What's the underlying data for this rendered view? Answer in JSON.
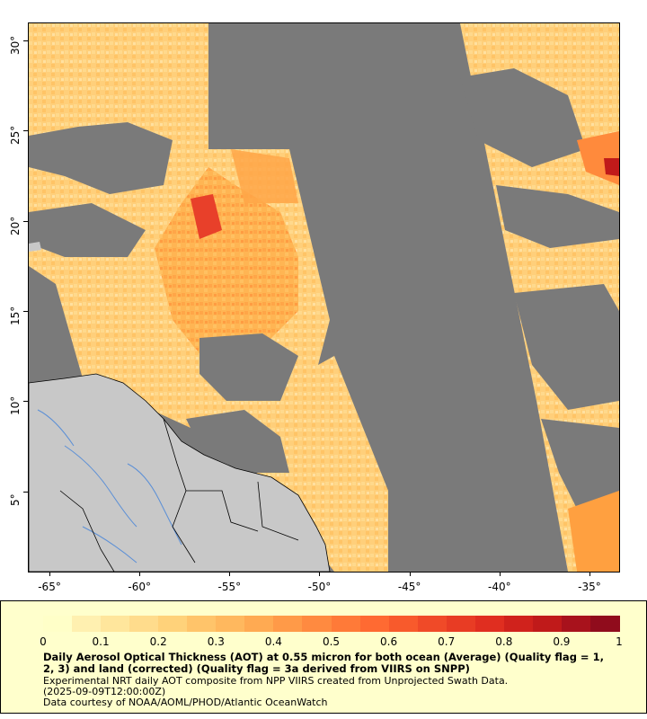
{
  "map": {
    "x_ticks": [
      "-65°",
      "-60°",
      "-55°",
      "-50°",
      "-45°",
      "-40°",
      "-35°"
    ],
    "y_ticks": [
      "30°",
      "25°",
      "20°",
      "15°",
      "10°",
      "5°"
    ],
    "lon_range": [
      -66.2,
      -33.4
    ],
    "lat_range": [
      0.6,
      31.0
    ],
    "colors": {
      "no_data": "#7a7a7a",
      "land": "#c8c8c8",
      "river": "#5b8fd6",
      "border": "#000000"
    }
  },
  "legend": {
    "colorbar_labels": [
      "0",
      "0.1",
      "0.2",
      "0.3",
      "0.4",
      "0.5",
      "0.6",
      "0.7",
      "0.8",
      "0.9",
      "1"
    ],
    "colorbar_colors": [
      "#ffffc8",
      "#fff0b0",
      "#ffe69c",
      "#ffdc8c",
      "#ffd27a",
      "#ffc46a",
      "#ffb85e",
      "#ffaa52",
      "#ff9a48",
      "#ff8a40",
      "#ff7a38",
      "#ff6a32",
      "#f85a2c",
      "#f04a28",
      "#e83c24",
      "#e02e20",
      "#d0221c",
      "#c01a1a",
      "#a8121c",
      "#900c1c"
    ],
    "title": "Daily Aerosol Optical Thickness (AOT) at 0.55 micron for both ocean (Average) (Quality flag = 1, 2, 3) and land (corrected) (Quality flag = 3a derived from VIIRS on SNPP)",
    "lines": [
      "Experimental NRT daily AOT composite from NPP VIIRS created from Unprojected Swath Data.",
      "(2025-09-09T12:00:00Z)",
      "Data courtesy of NOAA/AOML/PHOD/Atlantic OceanWatch"
    ]
  }
}
